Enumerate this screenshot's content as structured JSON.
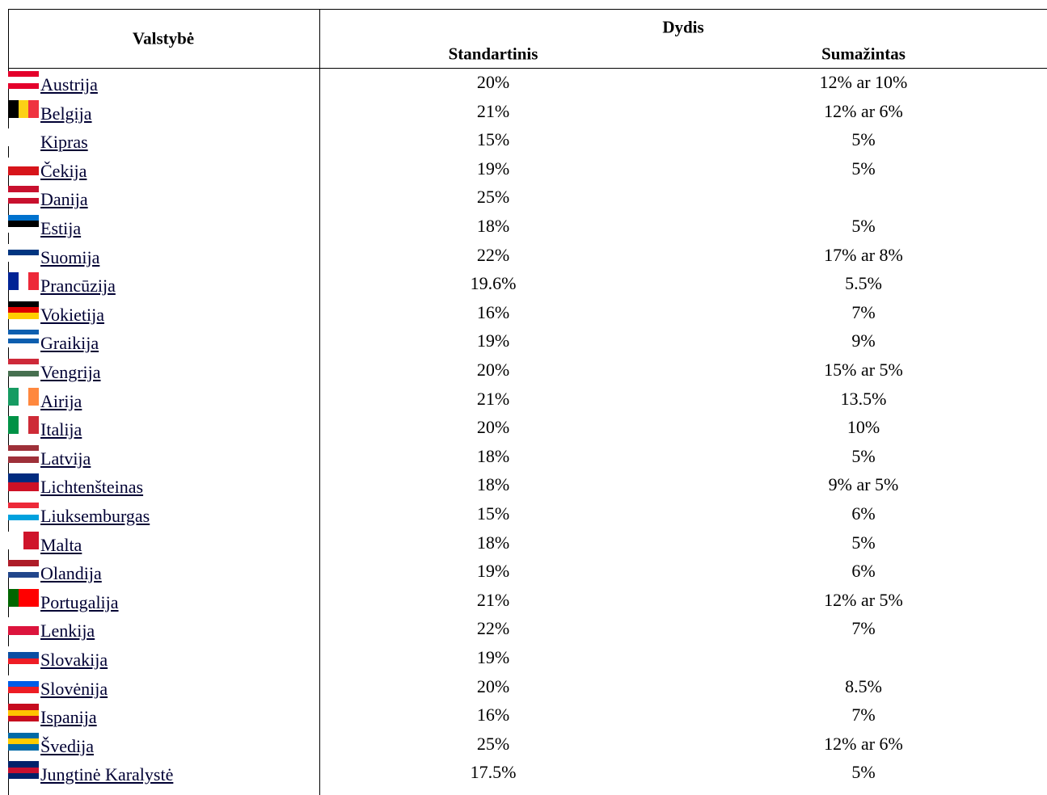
{
  "table": {
    "header": {
      "country": "Valstybė",
      "size": "Dydis",
      "standard": "Standartinis",
      "reduced": "Sumažintas"
    },
    "rows": [
      [
        "Austrija",
        "20%",
        "12% ar 10%"
      ],
      [
        "Belgija",
        "21%",
        "12% ar 6%"
      ],
      [
        "Kipras",
        "15%",
        "5%"
      ],
      [
        "Čekija",
        "19%",
        "5%"
      ],
      [
        "Danija",
        "25%",
        null
      ],
      [
        "Estija",
        "18%",
        "5%"
      ],
      [
        "Suomija",
        "22%",
        "17% ar 8%"
      ],
      [
        "Prancūzija",
        "19.6%",
        "5.5%"
      ],
      [
        "Vokietija",
        "16%",
        "7%"
      ],
      [
        "Graikija",
        "19%",
        "9%"
      ],
      [
        "Vengrija",
        "20%",
        "15% ar 5%"
      ],
      [
        "Airija",
        "21%",
        "13.5%"
      ],
      [
        "Italija",
        "20%",
        "10%"
      ],
      [
        "Latvija",
        "18%",
        "5%"
      ],
      [
        "Lichtenšteinas",
        "18%",
        "9% ar 5%"
      ],
      [
        "Liuksemburgas",
        "15%",
        "6%"
      ],
      [
        "Malta",
        "18%",
        "5%"
      ],
      [
        "Olandija",
        "19%",
        "6%"
      ],
      [
        "Portugalija",
        "21%",
        "12% ar 5%"
      ],
      [
        "Lenkija",
        "22%",
        "7%"
      ],
      [
        "Slovakija",
        "19%",
        null
      ],
      [
        "Slovėnija",
        "20%",
        "8.5%"
      ],
      [
        "Ispanija",
        "16%",
        "7%"
      ],
      [
        "Švedija",
        "25%",
        "12% ar 6%"
      ],
      [
        "Jungtinė Karalystė",
        "17.5%",
        "5%"
      ]
    ]
  }
}
